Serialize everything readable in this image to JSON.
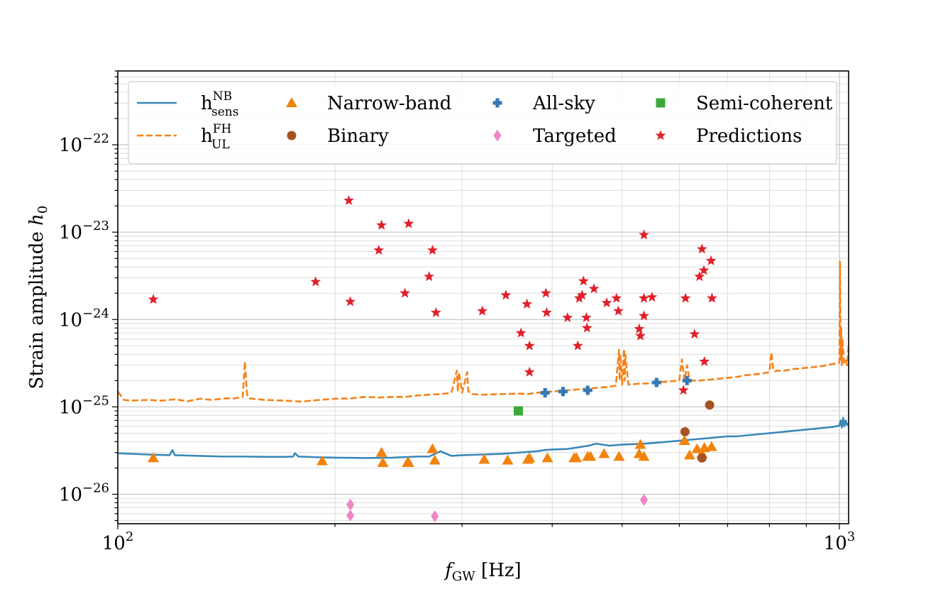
{
  "chart_data": {
    "type": "scatter",
    "xscale": "log",
    "yscale": "log",
    "xlim": [
      100,
      1030
    ],
    "ylim": [
      4.6e-27,
      7e-22
    ],
    "xlabel": {
      "main": "f",
      "sub": "GW",
      "unit": " [Hz]"
    },
    "ylabel": {
      "main": "Strain amplitude ",
      "italic": "h",
      "sub": "0"
    },
    "x_ticks": [
      {
        "value": 100,
        "base": "10",
        "exp": "2"
      },
      {
        "value": 1000,
        "base": "10",
        "exp": "3"
      }
    ],
    "y_ticks": [
      {
        "value": 1e-26,
        "base": "10",
        "exp": "−26"
      },
      {
        "value": 1e-25,
        "base": "10",
        "exp": "−25"
      },
      {
        "value": 1e-24,
        "base": "10",
        "exp": "−24"
      },
      {
        "value": 1e-23,
        "base": "10",
        "exp": "−23"
      },
      {
        "value": 1e-22,
        "base": "10",
        "exp": "−22"
      }
    ],
    "grid": true,
    "legend_position": "top",
    "colors": {
      "sens": "#3a88b8",
      "ul": "#f58219",
      "narrowband": "#f2830c",
      "binary": "#a65323",
      "allsky": "#3778b4",
      "targeted": "#ee85c5",
      "semicoherent": "#3caa3a",
      "predictions": "#e0202a"
    },
    "legend": [
      {
        "key": "sens",
        "label": "h",
        "sup": "NB",
        "sub": "sens"
      },
      {
        "key": "ul",
        "label": "h",
        "sup": "FH",
        "sub": "UL"
      },
      {
        "key": "narrowband",
        "label": "Narrow-band"
      },
      {
        "key": "binary",
        "label": "Binary"
      },
      {
        "key": "allsky",
        "label": "All-sky"
      },
      {
        "key": "targeted",
        "label": "Targeted"
      },
      {
        "key": "semicoherent",
        "label": "Semi-coherent"
      },
      {
        "key": "predictions",
        "label": "Predictions"
      }
    ],
    "series": [
      {
        "name": "h_sens^NB",
        "key": "sens",
        "kind": "line",
        "x": [
          100,
          110,
          118,
          119,
          120,
          130,
          140,
          150,
          160,
          170,
          175,
          176,
          178,
          190,
          200,
          220,
          240,
          260,
          270,
          280,
          290,
          300,
          320,
          340,
          360,
          380,
          390,
          400,
          420,
          430,
          440,
          450,
          460,
          480,
          500,
          520,
          540,
          560,
          580,
          600,
          620,
          640,
          660,
          680,
          700,
          720,
          740,
          760,
          780,
          800,
          820,
          840,
          860,
          880,
          900,
          920,
          940,
          960,
          980,
          1000,
          1004,
          1008,
          1012,
          1016,
          1020,
          1025,
          1030
        ],
        "y": [
          2.95e-26,
          2.85e-26,
          2.8e-26,
          3.2e-26,
          2.8e-26,
          2.75e-26,
          2.7e-26,
          2.7e-26,
          2.68e-26,
          2.68e-26,
          2.7e-26,
          2.95e-26,
          2.7e-26,
          2.65e-26,
          2.62e-26,
          2.6e-26,
          2.62e-26,
          2.7e-26,
          2.7e-26,
          3.1e-26,
          2.75e-26,
          2.8e-26,
          2.85e-26,
          2.9e-26,
          3e-26,
          3.1e-26,
          3.2e-26,
          3.25e-26,
          3.3e-26,
          3.4e-26,
          3.5e-26,
          3.6e-26,
          3.8e-26,
          3.6e-26,
          3.7e-26,
          3.75e-26,
          3.8e-26,
          3.9e-26,
          4e-26,
          4.1e-26,
          4.2e-26,
          4.3e-26,
          4.4e-26,
          4.5e-26,
          4.6e-26,
          4.6e-26,
          4.7e-26,
          4.8e-26,
          4.9e-26,
          5e-26,
          5.1e-26,
          5.2e-26,
          5.3e-26,
          5.4e-26,
          5.5e-26,
          5.6e-26,
          5.7e-26,
          5.8e-26,
          5.9e-26,
          6.1e-26,
          7e-26,
          5.8e-26,
          7.5e-26,
          6e-26,
          7e-26,
          6.2e-26,
          6.5e-26
        ]
      },
      {
        "name": "h_UL^FH",
        "key": "ul",
        "kind": "line",
        "x": [
          100,
          102,
          104,
          110,
          115,
          120,
          125,
          130,
          135,
          140,
          145,
          149,
          150,
          151,
          152,
          160,
          170,
          180,
          190,
          200,
          210,
          220,
          230,
          240,
          250,
          260,
          270,
          280,
          290,
          295,
          296,
          297,
          300,
          305,
          306,
          310,
          320,
          340,
          360,
          370,
          380,
          400,
          420,
          440,
          460,
          480,
          490,
          495,
          496,
          497,
          500,
          503,
          504,
          505,
          510,
          530,
          540,
          560,
          580,
          600,
          605,
          610,
          615,
          620,
          640,
          660,
          680,
          700,
          720,
          740,
          760,
          780,
          800,
          805,
          810,
          815,
          820,
          840,
          860,
          880,
          900,
          920,
          940,
          960,
          980,
          1000,
          1002,
          1004,
          1006,
          1008,
          1010,
          1015,
          1020,
          1025,
          1030
        ],
        "y": [
          1.5e-25,
          1.2e-25,
          1.18e-25,
          1.2e-25,
          1.18e-25,
          1.22e-25,
          1.16e-25,
          1.24e-25,
          1.2e-25,
          1.25e-25,
          1.25e-25,
          1.3e-25,
          3.3e-25,
          1.4e-25,
          1.25e-25,
          1.2e-25,
          1.18e-25,
          1.15e-25,
          1.2e-25,
          1.24e-25,
          1.25e-25,
          1.3e-25,
          1.28e-25,
          1.3e-25,
          1.3e-25,
          1.35e-25,
          1.38e-25,
          1.4e-25,
          1.45e-25,
          2.6e-25,
          1.5e-25,
          2.5e-25,
          1.45e-25,
          2.5e-25,
          1.5e-25,
          1.4e-25,
          1.38e-25,
          1.4e-25,
          1.42e-25,
          1.4e-25,
          1.45e-25,
          1.5e-25,
          1.55e-25,
          1.6e-25,
          1.65e-25,
          1.7e-25,
          1.75e-25,
          4.5e-25,
          2e-25,
          4e-25,
          1.8e-25,
          4.6e-25,
          2e-25,
          4e-25,
          1.8e-25,
          1.85e-25,
          1.85e-25,
          1.9e-25,
          1.95e-25,
          2e-25,
          3.5e-25,
          2e-25,
          3e-25,
          2e-25,
          2e-25,
          2.05e-25,
          2.1e-25,
          2.15e-25,
          2.2e-25,
          2.3e-25,
          2.35e-25,
          2.4e-25,
          2.5e-25,
          4.2e-25,
          2.6e-25,
          2.55e-25,
          2.6e-25,
          2.6e-25,
          2.7e-25,
          2.75e-25,
          2.8e-25,
          2.85e-25,
          2.9e-25,
          3e-25,
          3.1e-25,
          3.2e-25,
          4.6e-24,
          3.5e-25,
          8e-25,
          3e-25,
          6e-25,
          3.2e-25,
          3.5e-25,
          3e-25,
          5e-25
        ]
      },
      {
        "name": "Narrow-band",
        "key": "narrowband",
        "kind": "marker",
        "marker": "triangle",
        "x": [
          112,
          192,
          232,
          233,
          252,
          253,
          273,
          275,
          322,
          347,
          370,
          372,
          394,
          429,
          432,
          448,
          452,
          472,
          495,
          528,
          530,
          536,
          610,
          620,
          635,
          645,
          650,
          665
        ],
        "y": [
          2.6e-26,
          2.4e-26,
          3e-26,
          2.3e-26,
          2.3e-26,
          2.3e-26,
          3.3e-26,
          2.45e-26,
          2.5e-26,
          2.45e-26,
          2.5e-26,
          2.6e-26,
          2.6e-26,
          2.6e-26,
          2.6e-26,
          2.7e-26,
          2.7e-26,
          2.9e-26,
          2.7e-26,
          2.9e-26,
          3.7e-26,
          2.7e-26,
          4.1e-26,
          2.8e-26,
          3.3e-26,
          2.9e-26,
          3.4e-26,
          3.5e-26
        ]
      },
      {
        "name": "Binary",
        "key": "binary",
        "kind": "marker",
        "marker": "circle",
        "x": [
          611,
          645,
          661
        ],
        "y": [
          5.2e-26,
          2.6e-26,
          1.05e-25
        ]
      },
      {
        "name": "All-sky",
        "key": "allsky",
        "kind": "marker",
        "marker": "plus",
        "x": [
          391,
          414,
          448,
          558,
          615
        ],
        "y": [
          1.45e-25,
          1.5e-25,
          1.55e-25,
          1.9e-25,
          2e-25
        ]
      },
      {
        "name": "Targeted",
        "key": "targeted",
        "kind": "marker",
        "marker": "diamond",
        "x": [
          210,
          210,
          275,
          536
        ],
        "y": [
          7.6e-27,
          5.7e-27,
          5.6e-27,
          8.6e-27
        ]
      },
      {
        "name": "Semi-coherent",
        "key": "semicoherent",
        "kind": "marker",
        "marker": "square",
        "x": [
          359
        ],
        "y": [
          9e-26
        ]
      },
      {
        "name": "Predictions",
        "key": "predictions",
        "kind": "marker",
        "marker": "star",
        "x": [
          112,
          188,
          209,
          210,
          230,
          232,
          250,
          253,
          270,
          273,
          276,
          320,
          345,
          362,
          369,
          372,
          372,
          392,
          393,
          420,
          434,
          436,
          440,
          442,
          446,
          447,
          457,
          476,
          491,
          494,
          528,
          530,
          536,
          536,
          536,
          550,
          608,
          612,
          630,
          640,
          645,
          649,
          650,
          664,
          666
        ],
        "y": [
          1.7e-24,
          2.7e-24,
          2.3e-23,
          1.6e-24,
          6.2e-24,
          1.2e-23,
          2e-24,
          1.25e-23,
          3.1e-24,
          6.2e-24,
          1.2e-24,
          1.25e-24,
          1.9e-24,
          7e-25,
          1.5e-24,
          5e-25,
          2.5e-25,
          2e-24,
          1.2e-24,
          1.05e-24,
          5e-25,
          1.75e-24,
          1.9e-24,
          2.75e-24,
          1.05e-24,
          8e-25,
          2.25e-24,
          1.55e-24,
          1.75e-24,
          1.25e-24,
          7.8e-25,
          6.5e-25,
          1.75e-24,
          9.3e-24,
          1.1e-24,
          1.8e-24,
          1.55e-25,
          1.75e-24,
          6.8e-25,
          3.1e-24,
          6.4e-24,
          3.65e-24,
          3.3e-25,
          4.7e-24,
          1.75e-24
        ]
      }
    ]
  }
}
